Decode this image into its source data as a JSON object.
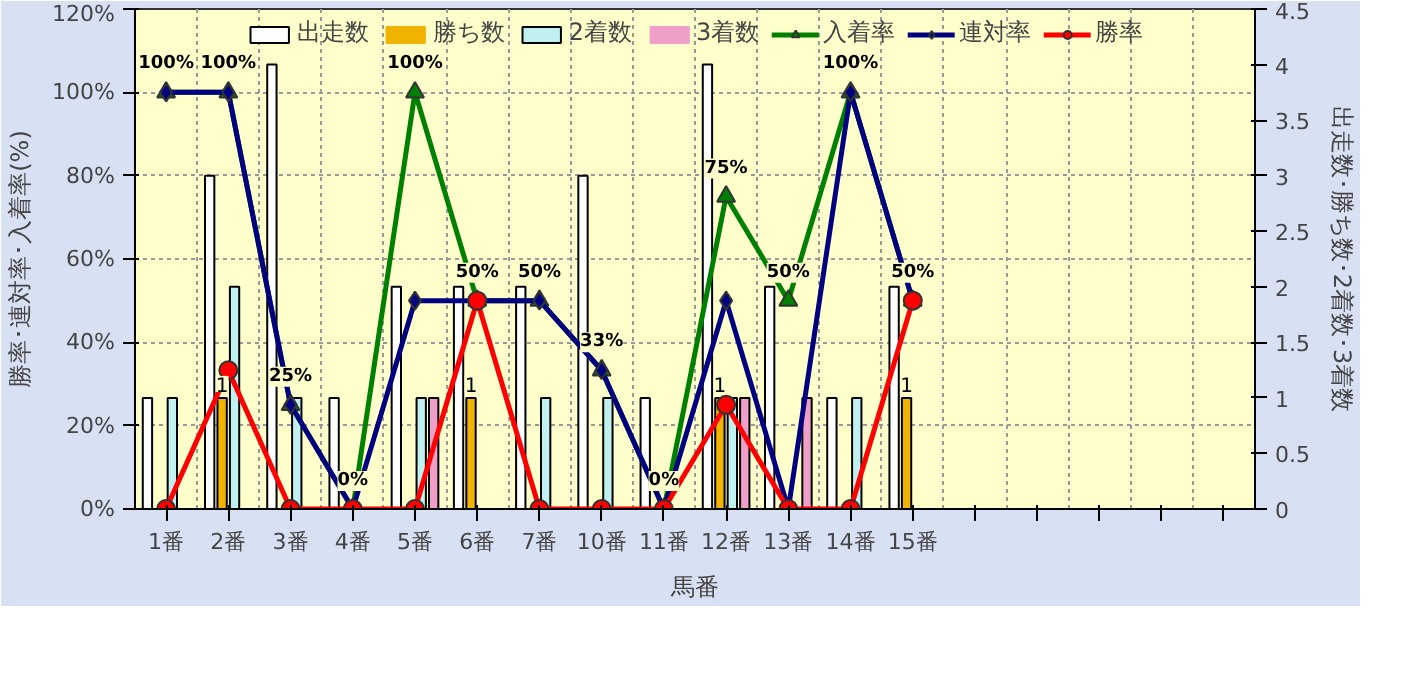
{
  "chart_data": {
    "type": "bar",
    "xlabel": "馬番",
    "ylabel": "勝率･連対率･入着率(%)",
    "y2label": "出走数･勝ち数･2着数･3着数",
    "categories": [
      "1番",
      "2番",
      "3番",
      "4番",
      "5番",
      "6番",
      "7番",
      "10番",
      "11番",
      "12番",
      "13番",
      "14番",
      "15番",
      null,
      null,
      null,
      null,
      null
    ],
    "series": [
      {
        "name": "出走数",
        "axis": "y2",
        "color": "#ffffff",
        "values": [
          1,
          3,
          4,
          1,
          2,
          2,
          2,
          3,
          1,
          4,
          2,
          1,
          2,
          null,
          null,
          null,
          null,
          null
        ]
      },
      {
        "name": "勝ち数",
        "axis": "y2",
        "color": "#f0b400",
        "values": [
          0,
          1,
          0,
          0,
          0,
          1,
          0,
          0,
          0,
          1,
          0,
          0,
          1,
          null,
          null,
          null,
          null,
          null
        ],
        "value_labels": [
          null,
          "1",
          null,
          null,
          null,
          "1",
          null,
          null,
          null,
          "1",
          null,
          null,
          "1",
          null,
          null,
          null,
          null,
          null
        ]
      },
      {
        "name": "2着数",
        "axis": "y2",
        "color": "#c0f0f0",
        "values": [
          1,
          2,
          1,
          0,
          1,
          0,
          1,
          1,
          0,
          1,
          0,
          1,
          0,
          null,
          null,
          null,
          null,
          null
        ]
      },
      {
        "name": "3着数",
        "axis": "y2",
        "color": "#f0a0c8",
        "values": [
          0,
          0,
          0,
          0,
          1,
          0,
          0,
          0,
          0,
          1,
          1,
          0,
          0,
          null,
          null,
          null,
          null,
          null
        ]
      },
      {
        "name": "入着率",
        "type": "line",
        "marker": "triangle",
        "color": "#008000",
        "values": [
          100,
          100,
          25,
          0,
          100,
          50,
          50,
          33.3,
          0,
          75,
          50,
          100,
          50,
          null,
          null,
          null,
          null,
          null
        ],
        "value_labels": [
          "100%",
          "100%",
          "25%",
          "0%",
          "100%",
          "50%",
          "50%",
          "33%",
          "0%",
          "75%",
          "50%",
          "100%",
          "50%",
          null,
          null,
          null,
          null,
          null
        ]
      },
      {
        "name": "連対率",
        "type": "line",
        "marker": "diamond",
        "color": "#000080",
        "values": [
          100,
          100,
          25,
          0,
          50,
          50,
          50,
          33.3,
          0,
          50,
          0,
          100,
          50,
          null,
          null,
          null,
          null,
          null
        ]
      },
      {
        "name": "勝率",
        "type": "line",
        "marker": "circle",
        "color": "#ff0000",
        "values": [
          0,
          33.3,
          0,
          0,
          0,
          50,
          0,
          0,
          0,
          25,
          0,
          0,
          50,
          null,
          null,
          null,
          null,
          null
        ]
      }
    ],
    "ylim": [
      0,
      120
    ],
    "yticks": [
      {
        "value": 0,
        "label": "0%"
      },
      {
        "value": 20,
        "label": "20%"
      },
      {
        "value": 40,
        "label": "40%"
      },
      {
        "value": 60,
        "label": "60%"
      },
      {
        "value": 80,
        "label": "80%"
      },
      {
        "value": 100,
        "label": "100%"
      },
      {
        "value": 120,
        "label": "120%"
      }
    ],
    "y2lim": [
      0,
      4.5
    ],
    "y2ticks": [
      0,
      0.5,
      1,
      1.5,
      2,
      2.5,
      3,
      3.5,
      4,
      4.5
    ],
    "grid": true,
    "legend": "top"
  }
}
